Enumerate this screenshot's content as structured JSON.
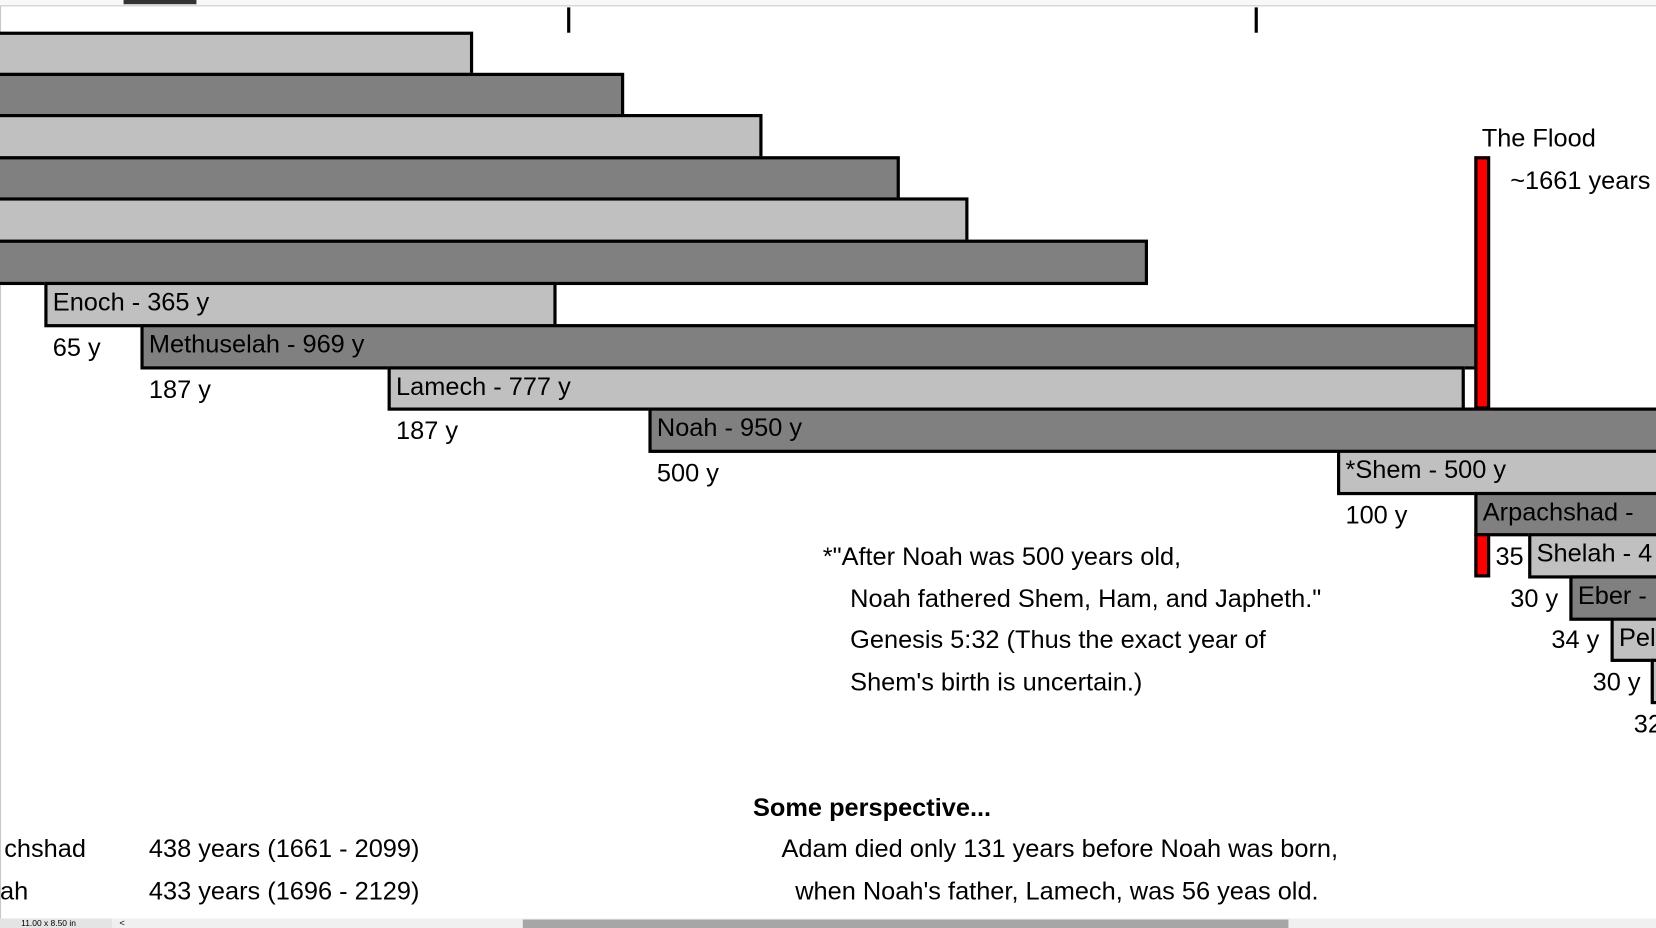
{
  "timeline": {
    "colors": {
      "light_bar": "#c0c0c0",
      "dark_bar": "#808080",
      "flood_marker": "#ff0000"
    },
    "bars": [
      {
        "label": "Enoch - 365 y",
        "offset_label": "65 y"
      },
      {
        "label": "Methuselah - 969 y",
        "offset_label": "187 y"
      },
      {
        "label": "Lamech - 777 y",
        "offset_label": "187 y"
      },
      {
        "label": "Noah - 950 y",
        "offset_label": "500 y"
      },
      {
        "label": "*Shem - 500 y",
        "offset_label": "100 y"
      },
      {
        "label": "Arpachshad - ",
        "offset_label": "35"
      },
      {
        "label": "Shelah - 4",
        "offset_label": "30 y"
      },
      {
        "label": "Eber - ",
        "offset_label": "34 y"
      },
      {
        "label": "Pel",
        "offset_label": "30 y"
      },
      {
        "label": "",
        "offset_label": "32"
      }
    ],
    "flood": {
      "title": "The Flood",
      "year": "~1661 years"
    },
    "footnote": [
      "*\"After Noah was 500 years old,",
      "Noah fathered Shem, Ham, and Japheth.\"",
      "Genesis 5:32 (Thus the exact year of",
      "Shem's birth is uncertain.)"
    ]
  },
  "lifespans_table": [
    {
      "name": "chshad",
      "span": "438 years (1661 - 2099)"
    },
    {
      "name": "ah",
      "span": "433 years (1696 - 2129)"
    }
  ],
  "perspective": {
    "heading": "Some perspective...",
    "lines": [
      "Adam died only 131 years before Noah was born,",
      "when Noah's father, Lamech, was 56 yeas old."
    ]
  },
  "status_bar": {
    "page_size": "11.00 x 8.50 in",
    "scroll_left": "<"
  }
}
